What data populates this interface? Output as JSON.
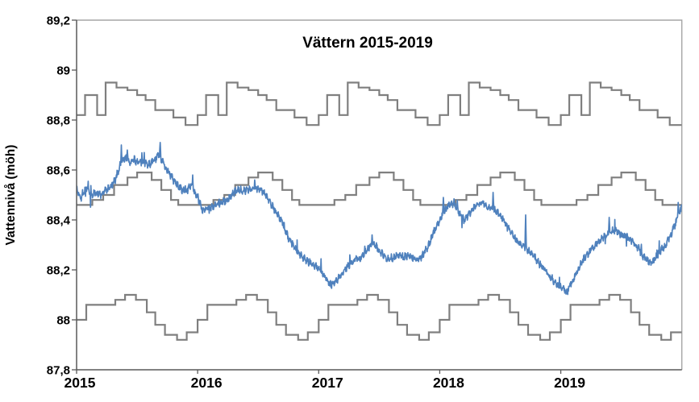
{
  "title": "Vättern 2015-2019",
  "y_axis": {
    "label": "Vattennivå (möh)",
    "tick_labels": [
      "87,8",
      "88",
      "88,2",
      "88,4",
      "88,6",
      "88,8",
      "89",
      "89,2"
    ],
    "tick_values": [
      87.8,
      88.0,
      88.2,
      88.4,
      88.6,
      88.8,
      89.0,
      89.2
    ],
    "min": 87.8,
    "max": 89.2
  },
  "x_axis": {
    "tick_labels": [
      "2015",
      "2016",
      "2017",
      "2018",
      "2019"
    ],
    "tick_values": [
      2015,
      2016,
      2017,
      2018,
      2019
    ],
    "min": 2015,
    "max": 2020
  },
  "colors": {
    "water_level_line": "#4F81BD",
    "regulation_limit_lines": "#7F7F7F",
    "axis": "#595959",
    "plot_border": "#A6A6A6",
    "text": "#000000",
    "background": "#FFFFFF"
  },
  "chart_data": {
    "type": "line",
    "title": "Vättern 2015-2019",
    "xlabel": "",
    "ylabel": "Vattennivå (möh)",
    "ylim": [
      87.8,
      89.2
    ],
    "xlim": [
      2015,
      2020
    ],
    "grid": false,
    "legend": "none",
    "series": [
      {
        "name": "upper_regulation_limit",
        "style": "step",
        "color": "#7F7F7F",
        "years": [
          2015,
          2016,
          2017,
          2018,
          2019
        ],
        "yearly_pattern": [
          [
            0.0,
            88.82
          ],
          [
            0.07,
            88.9
          ],
          [
            0.17,
            88.82
          ],
          [
            0.24,
            88.95
          ],
          [
            0.33,
            88.93
          ],
          [
            0.42,
            88.92
          ],
          [
            0.5,
            88.9
          ],
          [
            0.57,
            88.88
          ],
          [
            0.65,
            88.84
          ],
          [
            0.8,
            88.81
          ],
          [
            0.9,
            88.78
          ]
        ]
      },
      {
        "name": "mean_regulation_curve",
        "style": "step",
        "color": "#7F7F7F",
        "years": [
          2015,
          2016,
          2017,
          2018,
          2019
        ],
        "yearly_pattern": [
          [
            0.0,
            88.46
          ],
          [
            0.13,
            88.48
          ],
          [
            0.22,
            88.5
          ],
          [
            0.31,
            88.54
          ],
          [
            0.42,
            88.57
          ],
          [
            0.5,
            88.59
          ],
          [
            0.62,
            88.56
          ],
          [
            0.7,
            88.52
          ],
          [
            0.78,
            88.48
          ],
          [
            0.84,
            88.46
          ]
        ]
      },
      {
        "name": "lower_regulation_limit",
        "style": "step",
        "color": "#7F7F7F",
        "years": [
          2015,
          2016,
          2017,
          2018,
          2019
        ],
        "yearly_pattern": [
          [
            0.0,
            88.0
          ],
          [
            0.08,
            88.06
          ],
          [
            0.32,
            88.08
          ],
          [
            0.4,
            88.1
          ],
          [
            0.49,
            88.08
          ],
          [
            0.58,
            88.03
          ],
          [
            0.65,
            87.98
          ],
          [
            0.73,
            87.94
          ],
          [
            0.83,
            87.92
          ],
          [
            0.91,
            87.95
          ]
        ]
      },
      {
        "name": "water_level",
        "style": "noisy-line",
        "color": "#4F81BD",
        "noise_amplitude": 0.012,
        "wiggle_amplitude": 0.006,
        "wiggle_freq_per_year": 42,
        "seed": 7,
        "trend": [
          [
            2015.0,
            88.52
          ],
          [
            2015.04,
            88.49
          ],
          [
            2015.08,
            88.53
          ],
          [
            2015.12,
            88.5
          ],
          [
            2015.16,
            88.51
          ],
          [
            2015.2,
            88.5
          ],
          [
            2015.24,
            88.52
          ],
          [
            2015.28,
            88.53
          ],
          [
            2015.32,
            88.56
          ],
          [
            2015.36,
            88.62
          ],
          [
            2015.4,
            88.65
          ],
          [
            2015.44,
            88.63
          ],
          [
            2015.48,
            88.64
          ],
          [
            2015.52,
            88.63
          ],
          [
            2015.56,
            88.63
          ],
          [
            2015.6,
            88.62
          ],
          [
            2015.64,
            88.64
          ],
          [
            2015.68,
            88.66
          ],
          [
            2015.7,
            88.64
          ],
          [
            2015.75,
            88.6
          ],
          [
            2015.8,
            88.56
          ],
          [
            2015.85,
            88.53
          ],
          [
            2015.9,
            88.51
          ],
          [
            2015.94,
            88.54
          ],
          [
            2016.0,
            88.49
          ],
          [
            2016.04,
            88.44
          ],
          [
            2016.08,
            88.45
          ],
          [
            2016.12,
            88.45
          ],
          [
            2016.16,
            88.46
          ],
          [
            2016.2,
            88.47
          ],
          [
            2016.25,
            88.48
          ],
          [
            2016.3,
            88.51
          ],
          [
            2016.35,
            88.52
          ],
          [
            2016.4,
            88.52
          ],
          [
            2016.45,
            88.52
          ],
          [
            2016.5,
            88.53
          ],
          [
            2016.55,
            88.51
          ],
          [
            2016.6,
            88.47
          ],
          [
            2016.65,
            88.43
          ],
          [
            2016.7,
            88.39
          ],
          [
            2016.75,
            88.33
          ],
          [
            2016.8,
            88.29
          ],
          [
            2016.85,
            88.26
          ],
          [
            2016.9,
            88.24
          ],
          [
            2016.95,
            88.22
          ],
          [
            2017.0,
            88.21
          ],
          [
            2017.05,
            88.17
          ],
          [
            2017.1,
            88.14
          ],
          [
            2017.15,
            88.16
          ],
          [
            2017.2,
            88.19
          ],
          [
            2017.25,
            88.22
          ],
          [
            2017.3,
            88.24
          ],
          [
            2017.35,
            88.25
          ],
          [
            2017.4,
            88.28
          ],
          [
            2017.45,
            88.31
          ],
          [
            2017.5,
            88.28
          ],
          [
            2017.55,
            88.25
          ],
          [
            2017.6,
            88.24
          ],
          [
            2017.65,
            88.26
          ],
          [
            2017.7,
            88.25
          ],
          [
            2017.75,
            88.26
          ],
          [
            2017.8,
            88.24
          ],
          [
            2017.85,
            88.25
          ],
          [
            2017.9,
            88.29
          ],
          [
            2017.95,
            88.35
          ],
          [
            2018.0,
            88.4
          ],
          [
            2018.04,
            88.44
          ],
          [
            2018.08,
            88.46
          ],
          [
            2018.12,
            88.47
          ],
          [
            2018.16,
            88.43
          ],
          [
            2018.2,
            88.4
          ],
          [
            2018.25,
            88.43
          ],
          [
            2018.3,
            88.46
          ],
          [
            2018.35,
            88.47
          ],
          [
            2018.4,
            88.45
          ],
          [
            2018.45,
            88.44
          ],
          [
            2018.5,
            88.42
          ],
          [
            2018.55,
            88.38
          ],
          [
            2018.6,
            88.34
          ],
          [
            2018.65,
            88.31
          ],
          [
            2018.7,
            88.29
          ],
          [
            2018.75,
            88.27
          ],
          [
            2018.8,
            88.24
          ],
          [
            2018.85,
            88.21
          ],
          [
            2018.9,
            88.18
          ],
          [
            2018.95,
            88.15
          ],
          [
            2019.0,
            88.13
          ],
          [
            2019.05,
            88.11
          ],
          [
            2019.1,
            88.16
          ],
          [
            2019.15,
            88.21
          ],
          [
            2019.2,
            88.25
          ],
          [
            2019.25,
            88.28
          ],
          [
            2019.3,
            88.31
          ],
          [
            2019.35,
            88.33
          ],
          [
            2019.4,
            88.35
          ],
          [
            2019.45,
            88.36
          ],
          [
            2019.5,
            88.34
          ],
          [
            2019.55,
            88.33
          ],
          [
            2019.6,
            88.31
          ],
          [
            2019.65,
            88.28
          ],
          [
            2019.7,
            88.24
          ],
          [
            2019.75,
            88.23
          ],
          [
            2019.8,
            88.26
          ],
          [
            2019.85,
            88.29
          ],
          [
            2019.9,
            88.33
          ],
          [
            2019.95,
            88.39
          ],
          [
            2020.0,
            88.46
          ]
        ],
        "spikes": [
          [
            2015.37,
            88.7
          ],
          [
            2015.42,
            88.68
          ],
          [
            2015.56,
            88.67
          ],
          [
            2015.69,
            88.71
          ],
          [
            2015.96,
            88.58
          ],
          [
            2016.47,
            88.56
          ],
          [
            2017.44,
            88.34
          ],
          [
            2018.03,
            88.49
          ],
          [
            2018.44,
            88.51
          ],
          [
            2018.71,
            88.42
          ],
          [
            2019.4,
            88.41
          ],
          [
            2019.97,
            88.47
          ]
        ]
      }
    ]
  }
}
